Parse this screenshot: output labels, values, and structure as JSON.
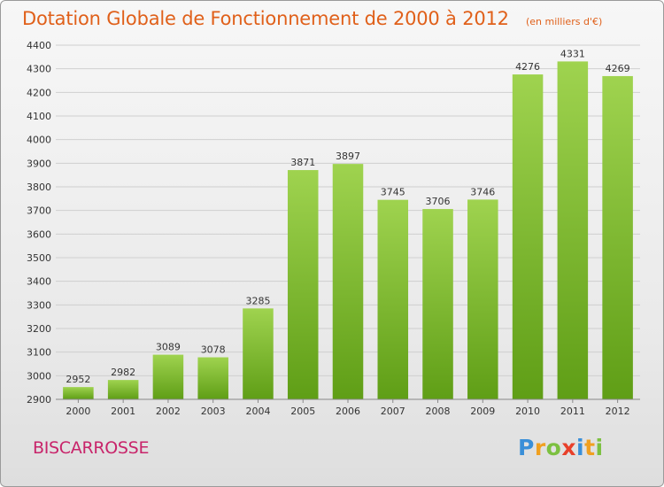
{
  "title": "Dotation Globale de Fonctionnement de 2000 à 2012",
  "subtitle": "(en milliers d'€)",
  "town": "BISCARROSSE",
  "logo": {
    "text": "Proxiti",
    "letters": [
      {
        "ch": "P",
        "color": "#3a8fd8"
      },
      {
        "ch": "r",
        "color": "#f0a020"
      },
      {
        "ch": "o",
        "color": "#7cc040"
      },
      {
        "ch": "x",
        "color": "#e8402a"
      },
      {
        "ch": "i",
        "color": "#3a8fd8"
      },
      {
        "ch": "t",
        "color": "#f0a020"
      },
      {
        "ch": "i",
        "color": "#7cc040"
      }
    ]
  },
  "colors": {
    "bar_top": "#9fd34f",
    "bar_bottom": "#5f9e16",
    "grid": "#cfcfcf",
    "title": "#e0601a",
    "town": "#c8246a"
  },
  "chart_data": {
    "type": "bar",
    "title": "Dotation Globale de Fonctionnement de 2000 à 2012",
    "subtitle": "(en milliers d'€)",
    "xlabel": "",
    "ylabel": "",
    "categories": [
      "2000",
      "2001",
      "2002",
      "2003",
      "2004",
      "2005",
      "2006",
      "2007",
      "2008",
      "2009",
      "2010",
      "2011",
      "2012"
    ],
    "values": [
      2952,
      2982,
      3089,
      3078,
      3285,
      3871,
      3897,
      3745,
      3706,
      3746,
      4276,
      4331,
      4269
    ],
    "ylim": [
      2900,
      4400
    ],
    "yticks": [
      2900,
      3000,
      3100,
      3200,
      3300,
      3400,
      3500,
      3600,
      3700,
      3800,
      3900,
      4000,
      4100,
      4200,
      4300,
      4400
    ],
    "grid": true,
    "legend": "none"
  }
}
